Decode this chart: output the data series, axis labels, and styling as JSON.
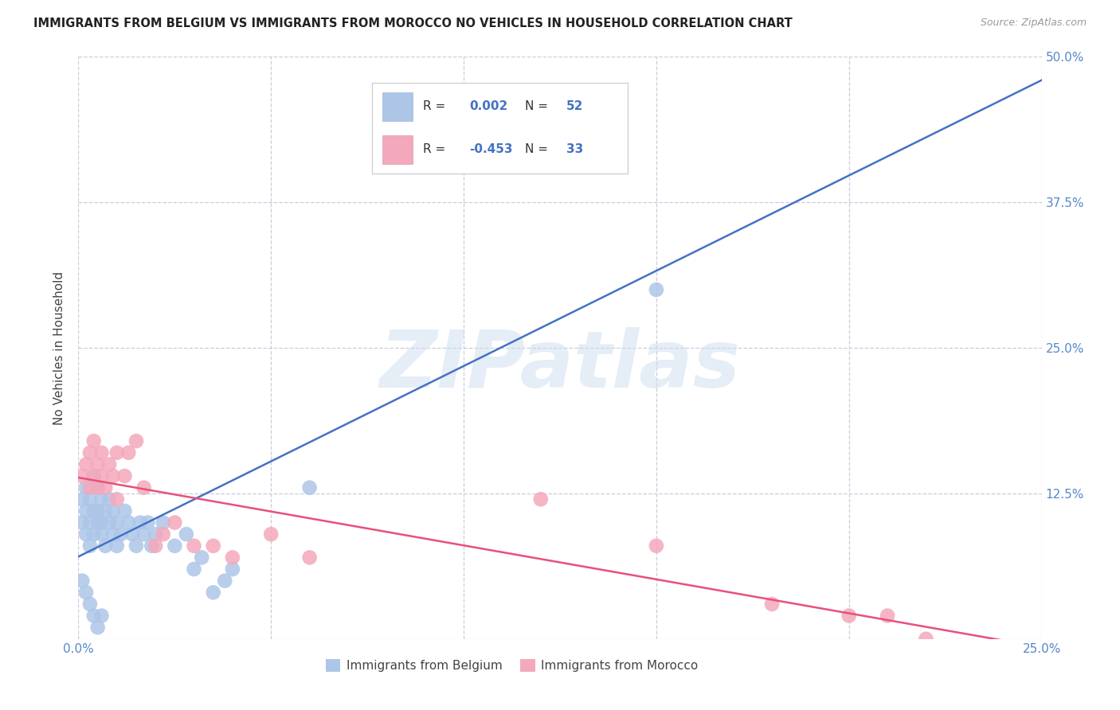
{
  "title": "IMMIGRANTS FROM BELGIUM VS IMMIGRANTS FROM MOROCCO NO VEHICLES IN HOUSEHOLD CORRELATION CHART",
  "source": "Source: ZipAtlas.com",
  "ylabel": "No Vehicles in Household",
  "watermark": "ZIPatlas",
  "xlim": [
    0.0,
    0.25
  ],
  "ylim": [
    0.0,
    0.5
  ],
  "xticks": [
    0.0,
    0.05,
    0.1,
    0.15,
    0.2,
    0.25
  ],
  "yticks": [
    0.0,
    0.125,
    0.25,
    0.375,
    0.5
  ],
  "xtick_labels": [
    "0.0%",
    "",
    "",
    "",
    "",
    "25.0%"
  ],
  "ytick_labels_right": [
    "",
    "12.5%",
    "25.0%",
    "37.5%",
    "50.0%"
  ],
  "belgium_R": 0.002,
  "belgium_N": 52,
  "morocco_R": -0.453,
  "morocco_N": 33,
  "belgium_color": "#adc6e8",
  "morocco_color": "#f4a8bb",
  "belgium_line_color": "#4472c4",
  "morocco_line_color": "#e8507a",
  "background_color": "#ffffff",
  "grid_color": "#ccccdd",
  "belgium_x": [
    0.001,
    0.001,
    0.002,
    0.002,
    0.002,
    0.003,
    0.003,
    0.003,
    0.004,
    0.004,
    0.004,
    0.005,
    0.005,
    0.005,
    0.006,
    0.006,
    0.006,
    0.007,
    0.007,
    0.008,
    0.008,
    0.009,
    0.009,
    0.01,
    0.01,
    0.011,
    0.012,
    0.013,
    0.014,
    0.015,
    0.016,
    0.017,
    0.018,
    0.019,
    0.02,
    0.022,
    0.025,
    0.028,
    0.03,
    0.032,
    0.035,
    0.038,
    0.04,
    0.001,
    0.002,
    0.003,
    0.004,
    0.005,
    0.006,
    0.06,
    0.12,
    0.15
  ],
  "belgium_y": [
    0.1,
    0.12,
    0.11,
    0.09,
    0.13,
    0.1,
    0.12,
    0.08,
    0.11,
    0.09,
    0.14,
    0.1,
    0.13,
    0.11,
    0.09,
    0.12,
    0.1,
    0.11,
    0.08,
    0.12,
    0.1,
    0.09,
    0.11,
    0.1,
    0.08,
    0.09,
    0.11,
    0.1,
    0.09,
    0.08,
    0.1,
    0.09,
    0.1,
    0.08,
    0.09,
    0.1,
    0.08,
    0.09,
    0.06,
    0.07,
    0.04,
    0.05,
    0.06,
    0.05,
    0.04,
    0.03,
    0.02,
    0.01,
    0.02,
    0.13,
    0.42,
    0.3
  ],
  "morocco_x": [
    0.001,
    0.002,
    0.003,
    0.003,
    0.004,
    0.004,
    0.005,
    0.005,
    0.006,
    0.006,
    0.007,
    0.008,
    0.009,
    0.01,
    0.01,
    0.012,
    0.013,
    0.015,
    0.017,
    0.02,
    0.022,
    0.025,
    0.03,
    0.035,
    0.04,
    0.05,
    0.06,
    0.12,
    0.15,
    0.18,
    0.2,
    0.21,
    0.22
  ],
  "morocco_y": [
    0.14,
    0.15,
    0.13,
    0.16,
    0.14,
    0.17,
    0.15,
    0.13,
    0.14,
    0.16,
    0.13,
    0.15,
    0.14,
    0.12,
    0.16,
    0.14,
    0.16,
    0.17,
    0.13,
    0.08,
    0.09,
    0.1,
    0.08,
    0.08,
    0.07,
    0.09,
    0.07,
    0.12,
    0.08,
    0.03,
    0.02,
    0.02,
    0.0
  ]
}
